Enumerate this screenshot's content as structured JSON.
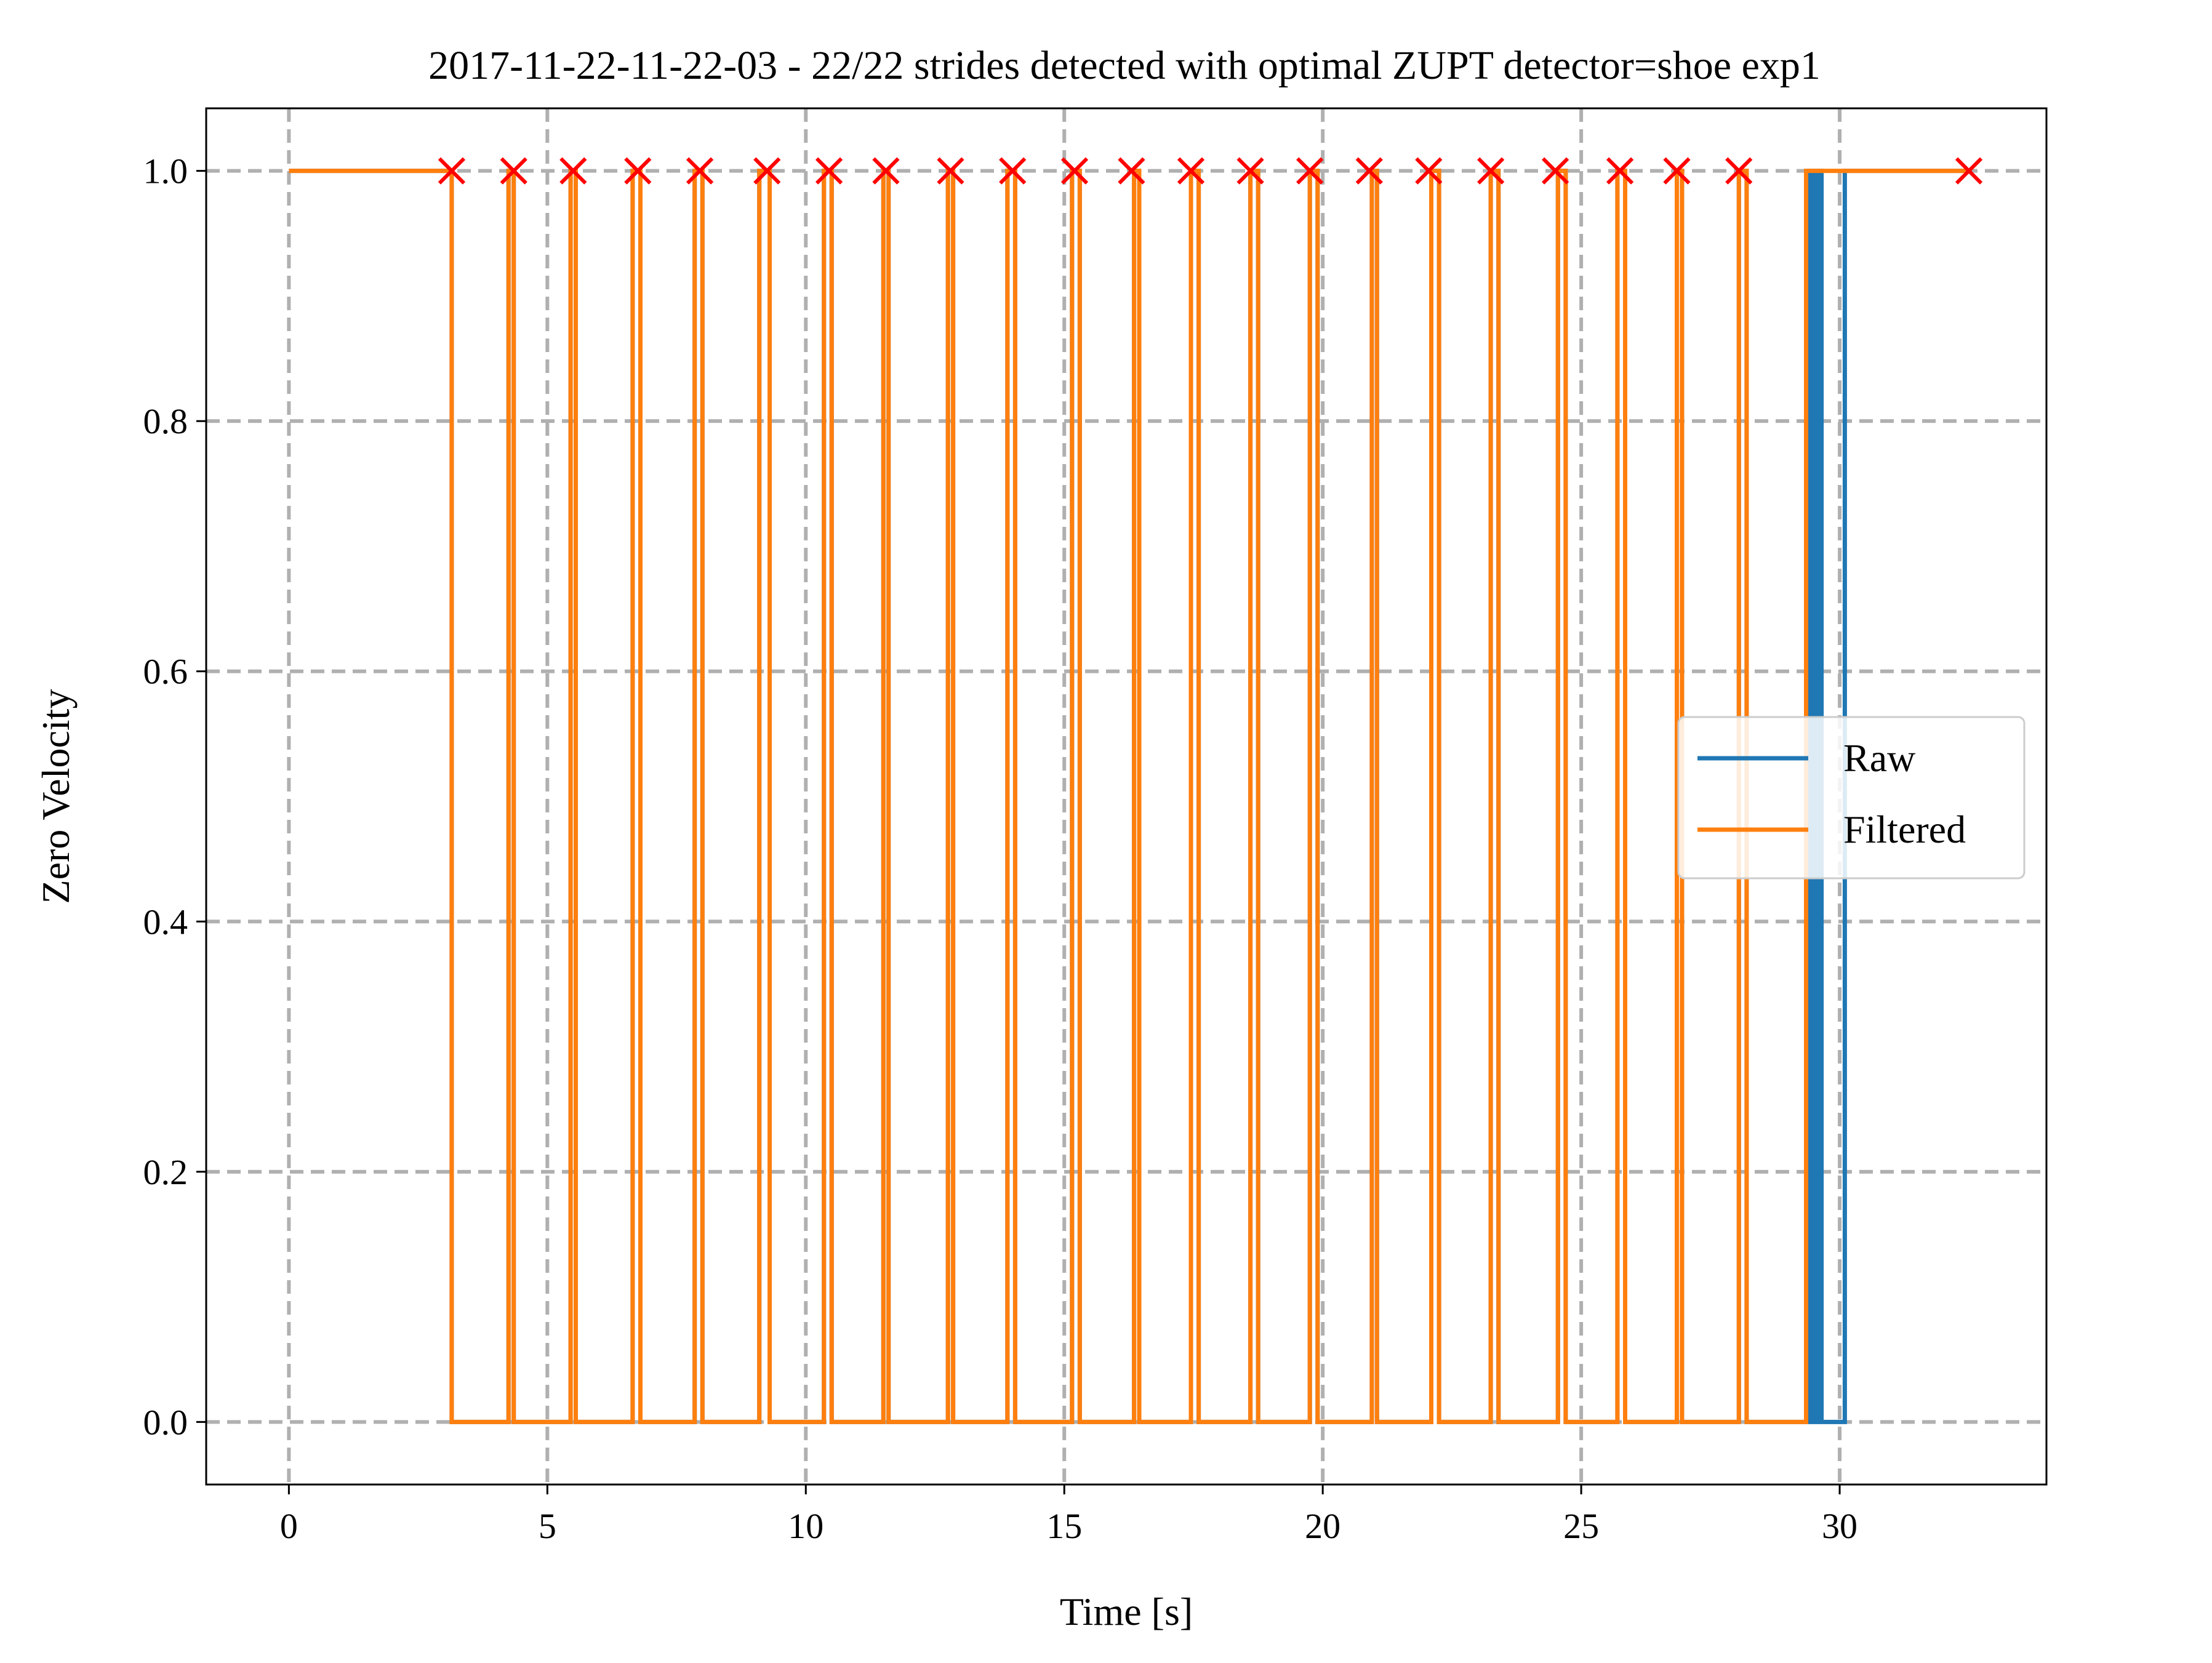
{
  "chart_data": {
    "type": "line",
    "title": "2017-11-22-11-22-03 - 22/22 strides detected with optimal ZUPT detector=shoe exp1",
    "xlabel": "Time [s]",
    "ylabel": "Zero Velocity",
    "xlim": [
      -1.6,
      34.0
    ],
    "ylim": [
      -0.05,
      1.05
    ],
    "xticks": [
      0,
      5,
      10,
      15,
      20,
      25,
      30
    ],
    "xtick_labels": [
      "0",
      "5",
      "10",
      "15",
      "20",
      "25",
      "30"
    ],
    "yticks": [
      0.0,
      0.2,
      0.4,
      0.6,
      0.8,
      1.0
    ],
    "ytick_labels": [
      "0.0",
      "0.2",
      "0.4",
      "0.6",
      "0.8",
      "1.0"
    ],
    "grid": true,
    "legend_position": "center-right",
    "series": [
      {
        "name": "Raw",
        "color": "#1f77b4",
        "values": [
          [
            0.0,
            1
          ],
          [
            3.15,
            1
          ],
          [
            3.15,
            0
          ],
          [
            4.25,
            0
          ],
          [
            4.25,
            1
          ],
          [
            4.35,
            1
          ],
          [
            4.35,
            0
          ],
          [
            5.45,
            0
          ],
          [
            5.45,
            1
          ],
          [
            5.55,
            1
          ],
          [
            5.55,
            0
          ],
          [
            6.65,
            0
          ],
          [
            6.65,
            1
          ],
          [
            6.8,
            1
          ],
          [
            6.8,
            0
          ],
          [
            7.85,
            0
          ],
          [
            7.85,
            1
          ],
          [
            8.0,
            1
          ],
          [
            8.0,
            0
          ],
          [
            9.1,
            0
          ],
          [
            9.1,
            1
          ],
          [
            9.3,
            1
          ],
          [
            9.3,
            0
          ],
          [
            10.35,
            0
          ],
          [
            10.35,
            1
          ],
          [
            10.5,
            1
          ],
          [
            10.5,
            0
          ],
          [
            11.5,
            0
          ],
          [
            11.5,
            1
          ],
          [
            11.6,
            1
          ],
          [
            11.6,
            0
          ],
          [
            12.75,
            0
          ],
          [
            12.75,
            1
          ],
          [
            12.85,
            1
          ],
          [
            12.85,
            0
          ],
          [
            13.9,
            0
          ],
          [
            13.9,
            1
          ],
          [
            14.05,
            1
          ],
          [
            14.05,
            0
          ],
          [
            15.15,
            0
          ],
          [
            15.15,
            1
          ],
          [
            15.3,
            1
          ],
          [
            15.3,
            0
          ],
          [
            16.35,
            0
          ],
          [
            16.35,
            1
          ],
          [
            16.45,
            1
          ],
          [
            16.45,
            0
          ],
          [
            17.45,
            0
          ],
          [
            17.45,
            1
          ],
          [
            17.6,
            1
          ],
          [
            17.6,
            0
          ],
          [
            18.6,
            0
          ],
          [
            18.6,
            1
          ],
          [
            18.75,
            1
          ],
          [
            18.75,
            0
          ],
          [
            19.75,
            0
          ],
          [
            19.75,
            1
          ],
          [
            19.9,
            1
          ],
          [
            19.9,
            0
          ],
          [
            20.95,
            0
          ],
          [
            20.95,
            1
          ],
          [
            21.05,
            1
          ],
          [
            21.05,
            0
          ],
          [
            22.1,
            0
          ],
          [
            22.1,
            1
          ],
          [
            22.25,
            1
          ],
          [
            22.25,
            0
          ],
          [
            23.25,
            0
          ],
          [
            23.25,
            1
          ],
          [
            23.4,
            1
          ],
          [
            23.4,
            0
          ],
          [
            24.55,
            0
          ],
          [
            24.55,
            1
          ],
          [
            24.7,
            1
          ],
          [
            24.7,
            0
          ],
          [
            25.7,
            0
          ],
          [
            25.7,
            1
          ],
          [
            25.85,
            1
          ],
          [
            25.85,
            0
          ],
          [
            26.85,
            0
          ],
          [
            26.85,
            1
          ],
          [
            26.95,
            1
          ],
          [
            26.95,
            0
          ],
          [
            28.05,
            0
          ],
          [
            28.05,
            1
          ],
          [
            28.2,
            1
          ],
          [
            28.2,
            0
          ],
          [
            29.4,
            0
          ],
          [
            29.4,
            1
          ],
          [
            29.45,
            1
          ],
          [
            29.45,
            0
          ],
          [
            29.5,
            0
          ],
          [
            29.5,
            1
          ],
          [
            29.55,
            1
          ],
          [
            29.55,
            0
          ],
          [
            29.6,
            0
          ],
          [
            29.6,
            1
          ],
          [
            29.65,
            1
          ],
          [
            29.65,
            0
          ],
          [
            30.1,
            0
          ],
          [
            30.1,
            1
          ],
          [
            32.5,
            1
          ]
        ]
      },
      {
        "name": "Filtered",
        "color": "#ff7f0e",
        "values": [
          [
            0.0,
            1
          ],
          [
            3.15,
            1
          ],
          [
            3.15,
            0
          ],
          [
            4.25,
            0
          ],
          [
            4.25,
            1
          ],
          [
            4.35,
            1
          ],
          [
            4.35,
            0
          ],
          [
            5.45,
            0
          ],
          [
            5.45,
            1
          ],
          [
            5.55,
            1
          ],
          [
            5.55,
            0
          ],
          [
            6.65,
            0
          ],
          [
            6.65,
            1
          ],
          [
            6.8,
            1
          ],
          [
            6.8,
            0
          ],
          [
            7.85,
            0
          ],
          [
            7.85,
            1
          ],
          [
            8.0,
            1
          ],
          [
            8.0,
            0
          ],
          [
            9.1,
            0
          ],
          [
            9.1,
            1
          ],
          [
            9.3,
            1
          ],
          [
            9.3,
            0
          ],
          [
            10.35,
            0
          ],
          [
            10.35,
            1
          ],
          [
            10.5,
            1
          ],
          [
            10.5,
            0
          ],
          [
            11.5,
            0
          ],
          [
            11.5,
            1
          ],
          [
            11.6,
            1
          ],
          [
            11.6,
            0
          ],
          [
            12.75,
            0
          ],
          [
            12.75,
            1
          ],
          [
            12.85,
            1
          ],
          [
            12.85,
            0
          ],
          [
            13.9,
            0
          ],
          [
            13.9,
            1
          ],
          [
            14.05,
            1
          ],
          [
            14.05,
            0
          ],
          [
            15.15,
            0
          ],
          [
            15.15,
            1
          ],
          [
            15.3,
            1
          ],
          [
            15.3,
            0
          ],
          [
            16.35,
            0
          ],
          [
            16.35,
            1
          ],
          [
            16.45,
            1
          ],
          [
            16.45,
            0
          ],
          [
            17.45,
            0
          ],
          [
            17.45,
            1
          ],
          [
            17.6,
            1
          ],
          [
            17.6,
            0
          ],
          [
            18.6,
            0
          ],
          [
            18.6,
            1
          ],
          [
            18.75,
            1
          ],
          [
            18.75,
            0
          ],
          [
            19.75,
            0
          ],
          [
            19.75,
            1
          ],
          [
            19.9,
            1
          ],
          [
            19.9,
            0
          ],
          [
            20.95,
            0
          ],
          [
            20.95,
            1
          ],
          [
            21.05,
            1
          ],
          [
            21.05,
            0
          ],
          [
            22.1,
            0
          ],
          [
            22.1,
            1
          ],
          [
            22.25,
            1
          ],
          [
            22.25,
            0
          ],
          [
            23.25,
            0
          ],
          [
            23.25,
            1
          ],
          [
            23.4,
            1
          ],
          [
            23.4,
            0
          ],
          [
            24.55,
            0
          ],
          [
            24.55,
            1
          ],
          [
            24.7,
            1
          ],
          [
            24.7,
            0
          ],
          [
            25.7,
            0
          ],
          [
            25.7,
            1
          ],
          [
            25.85,
            1
          ],
          [
            25.85,
            0
          ],
          [
            26.85,
            0
          ],
          [
            26.85,
            1
          ],
          [
            26.95,
            1
          ],
          [
            26.95,
            0
          ],
          [
            28.05,
            0
          ],
          [
            28.05,
            1
          ],
          [
            28.2,
            1
          ],
          [
            28.2,
            0
          ],
          [
            29.35,
            0
          ],
          [
            29.35,
            1
          ],
          [
            32.5,
            1
          ]
        ]
      }
    ],
    "markers": {
      "color": "#ff0000",
      "symbol": "x",
      "x": [
        3.15,
        4.35,
        5.5,
        6.75,
        7.95,
        9.25,
        10.45,
        11.55,
        12.8,
        14.0,
        15.2,
        16.3,
        17.45,
        18.6,
        19.75,
        20.9,
        22.05,
        23.25,
        24.5,
        25.75,
        26.85,
        28.05,
        32.5
      ],
      "y": [
        1,
        1,
        1,
        1,
        1,
        1,
        1,
        1,
        1,
        1,
        1,
        1,
        1,
        1,
        1,
        1,
        1,
        1,
        1,
        1,
        1,
        1,
        1
      ]
    }
  }
}
